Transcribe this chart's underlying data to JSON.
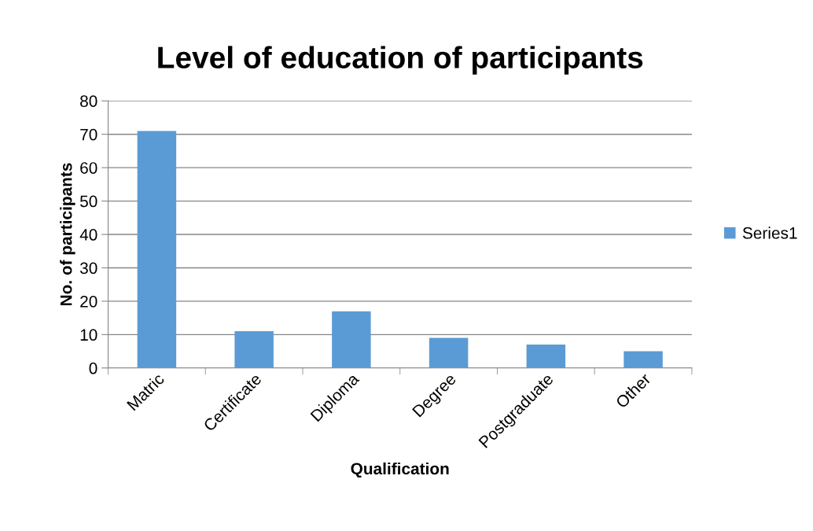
{
  "chart_data": {
    "type": "bar",
    "title": "Level of education of participants",
    "xlabel": "Qualification",
    "ylabel": "No. of participants",
    "categories": [
      "Matric",
      "Certificate",
      "Diploma",
      "Degree",
      "Postgraduate",
      "Other"
    ],
    "series": [
      {
        "name": "Series1",
        "color": "#5b9bd5",
        "values": [
          71,
          11,
          17,
          9,
          7,
          5
        ]
      }
    ],
    "ylim": [
      0,
      80
    ],
    "yticks": [
      0,
      10,
      20,
      30,
      40,
      50,
      60,
      70,
      80
    ],
    "grid": "y",
    "legend": "right"
  }
}
